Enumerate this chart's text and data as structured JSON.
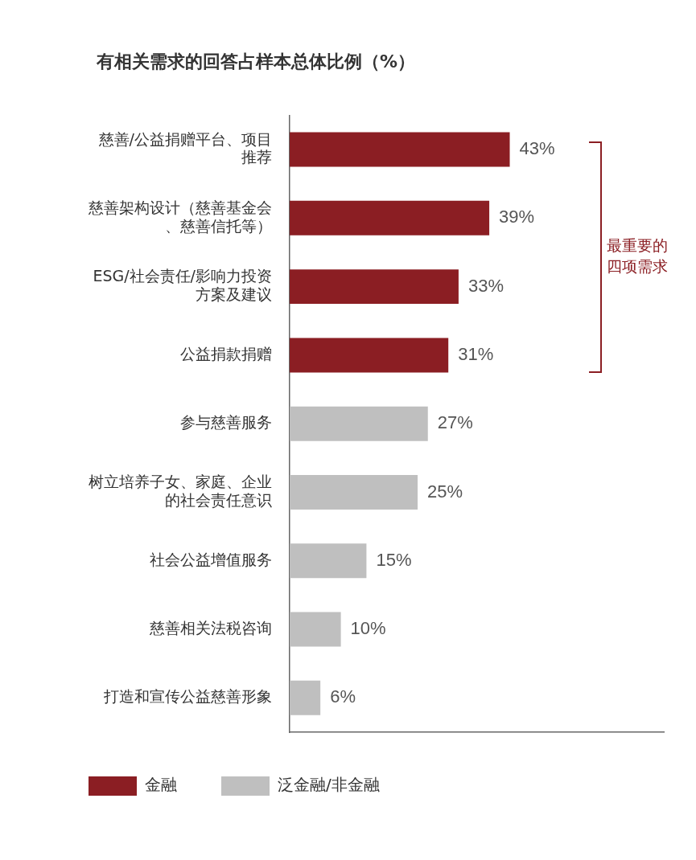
{
  "chart_data": {
    "type": "bar",
    "orientation": "horizontal",
    "title": "有相关需求的回答占样本总体比例（%）",
    "categories": [
      "慈善/公益捐赠平台、项目推荐",
      "慈善架构设计（慈善基金会、慈善信托等）",
      "ESG/社会责任/影响力投资方案及建议",
      "公益捐款捐赠",
      "参与慈善服务",
      "树立培养子女、家庭、企业的社会责任意识",
      "社会公益增值服务",
      "慈善相关法税咨询",
      "打造和宣传公益慈善形象"
    ],
    "series": [
      {
        "name": "金融",
        "color": "#8b1e23",
        "values": [
          43,
          39,
          33,
          31,
          null,
          null,
          null,
          null,
          null
        ],
        "value_labels": [
          "43%",
          "39%",
          "33%",
          "31%",
          null,
          null,
          null,
          null,
          null
        ]
      },
      {
        "name": "泛金融/非金融",
        "color": "#bfbfbf",
        "values": [
          null,
          null,
          null,
          null,
          27,
          25,
          15,
          10,
          6
        ],
        "value_labels": [
          null,
          null,
          null,
          null,
          "27%",
          "25%",
          "15%",
          "10%",
          "6%"
        ]
      }
    ],
    "annotations": [
      "最重要的四项需求"
    ],
    "tick_labels": "y",
    "grid": false,
    "legend": "bottom"
  }
}
